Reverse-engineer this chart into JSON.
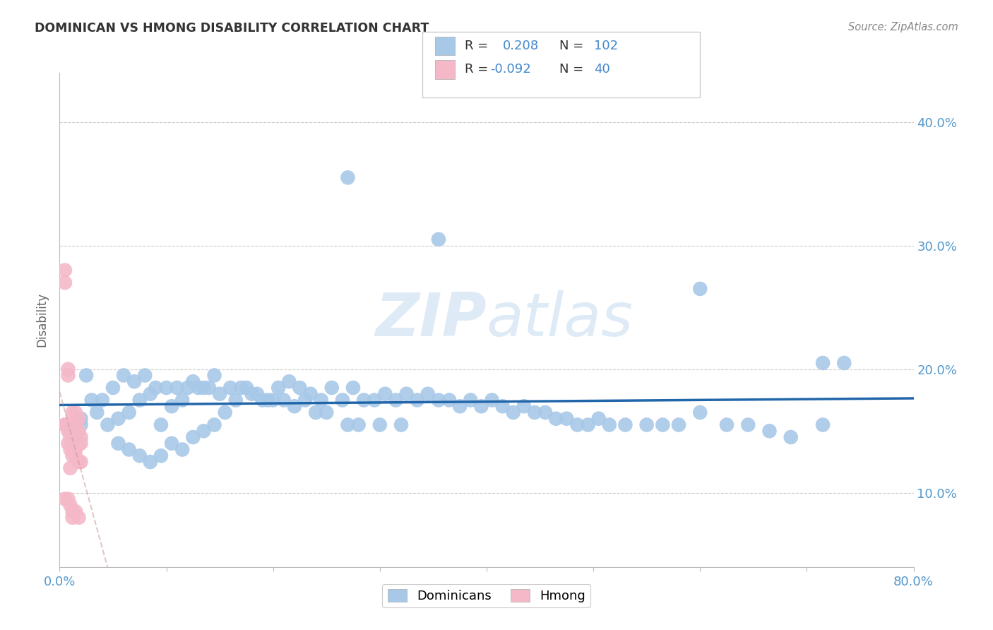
{
  "title": "DOMINICAN VS HMONG DISABILITY CORRELATION CHART",
  "source": "Source: ZipAtlas.com",
  "ylabel": "Disability",
  "xlim": [
    0.0,
    0.8
  ],
  "ylim": [
    0.04,
    0.44
  ],
  "xticks": [
    0.0,
    0.1,
    0.2,
    0.3,
    0.4,
    0.5,
    0.6,
    0.7,
    0.8
  ],
  "yticks": [
    0.1,
    0.2,
    0.3,
    0.4
  ],
  "dominican_color": "#a8c8e8",
  "hmong_color": "#f4b8c8",
  "trendline_dom_color": "#2266aa",
  "trendline_hmong_color": "#cc9999",
  "axis_label_color": "#5599cc",
  "text_color": "#333333",
  "source_color": "#888888",
  "grid_color": "#cccccc",
  "watermark_color": "#c8dff0",
  "background_color": "#ffffff",
  "legend_R_color": "#4488cc",
  "dom_scatter": {
    "x": [
      0.02,
      0.03,
      0.015,
      0.025,
      0.01,
      0.02,
      0.035,
      0.045,
      0.055,
      0.065,
      0.075,
      0.085,
      0.095,
      0.105,
      0.115,
      0.125,
      0.135,
      0.145,
      0.055,
      0.065,
      0.075,
      0.085,
      0.095,
      0.105,
      0.115,
      0.125,
      0.135,
      0.145,
      0.155,
      0.165,
      0.175,
      0.185,
      0.195,
      0.205,
      0.215,
      0.225,
      0.235,
      0.245,
      0.255,
      0.265,
      0.275,
      0.285,
      0.295,
      0.305,
      0.315,
      0.325,
      0.335,
      0.345,
      0.355,
      0.365,
      0.375,
      0.385,
      0.395,
      0.405,
      0.415,
      0.425,
      0.435,
      0.445,
      0.455,
      0.465,
      0.475,
      0.485,
      0.495,
      0.505,
      0.515,
      0.53,
      0.55,
      0.565,
      0.58,
      0.6,
      0.625,
      0.645,
      0.665,
      0.685,
      0.715,
      0.735,
      0.04,
      0.05,
      0.06,
      0.07,
      0.08,
      0.09,
      0.1,
      0.11,
      0.12,
      0.13,
      0.14,
      0.15,
      0.16,
      0.17,
      0.18,
      0.19,
      0.2,
      0.21,
      0.22,
      0.23,
      0.24,
      0.25,
      0.27,
      0.28,
      0.3,
      0.32
    ],
    "y": [
      0.155,
      0.175,
      0.145,
      0.195,
      0.15,
      0.16,
      0.165,
      0.155,
      0.16,
      0.165,
      0.175,
      0.18,
      0.155,
      0.17,
      0.175,
      0.19,
      0.185,
      0.195,
      0.14,
      0.135,
      0.13,
      0.125,
      0.13,
      0.14,
      0.135,
      0.145,
      0.15,
      0.155,
      0.165,
      0.175,
      0.185,
      0.18,
      0.175,
      0.185,
      0.19,
      0.185,
      0.18,
      0.175,
      0.185,
      0.175,
      0.185,
      0.175,
      0.175,
      0.18,
      0.175,
      0.18,
      0.175,
      0.18,
      0.175,
      0.175,
      0.17,
      0.175,
      0.17,
      0.175,
      0.17,
      0.165,
      0.17,
      0.165,
      0.165,
      0.16,
      0.16,
      0.155,
      0.155,
      0.16,
      0.155,
      0.155,
      0.155,
      0.155,
      0.155,
      0.165,
      0.155,
      0.155,
      0.15,
      0.145,
      0.155,
      0.205,
      0.175,
      0.185,
      0.195,
      0.19,
      0.195,
      0.185,
      0.185,
      0.185,
      0.185,
      0.185,
      0.185,
      0.18,
      0.185,
      0.185,
      0.18,
      0.175,
      0.175,
      0.175,
      0.17,
      0.175,
      0.165,
      0.165,
      0.155,
      0.155,
      0.155,
      0.155
    ]
  },
  "dom_outliers": {
    "x": [
      0.27,
      0.355,
      0.6,
      0.715
    ],
    "y": [
      0.355,
      0.305,
      0.265,
      0.205
    ]
  },
  "hmong_scatter": {
    "x": [
      0.005,
      0.008,
      0.01,
      0.012,
      0.015,
      0.018,
      0.008,
      0.01,
      0.012,
      0.015,
      0.018,
      0.02,
      0.008,
      0.01,
      0.012,
      0.015,
      0.018,
      0.02,
      0.005,
      0.008,
      0.01,
      0.012,
      0.015,
      0.018,
      0.02,
      0.005,
      0.008,
      0.01,
      0.012,
      0.015,
      0.018,
      0.005,
      0.008,
      0.01,
      0.012,
      0.015,
      0.005,
      0.008,
      0.01,
      0.012
    ],
    "y": [
      0.28,
      0.195,
      0.155,
      0.165,
      0.165,
      0.16,
      0.2,
      0.155,
      0.155,
      0.155,
      0.15,
      0.145,
      0.155,
      0.145,
      0.14,
      0.145,
      0.14,
      0.14,
      0.155,
      0.14,
      0.135,
      0.13,
      0.13,
      0.125,
      0.125,
      0.095,
      0.095,
      0.09,
      0.085,
      0.085,
      0.08,
      0.155,
      0.15,
      0.145,
      0.14,
      0.135,
      0.27,
      0.155,
      0.12,
      0.08
    ]
  }
}
